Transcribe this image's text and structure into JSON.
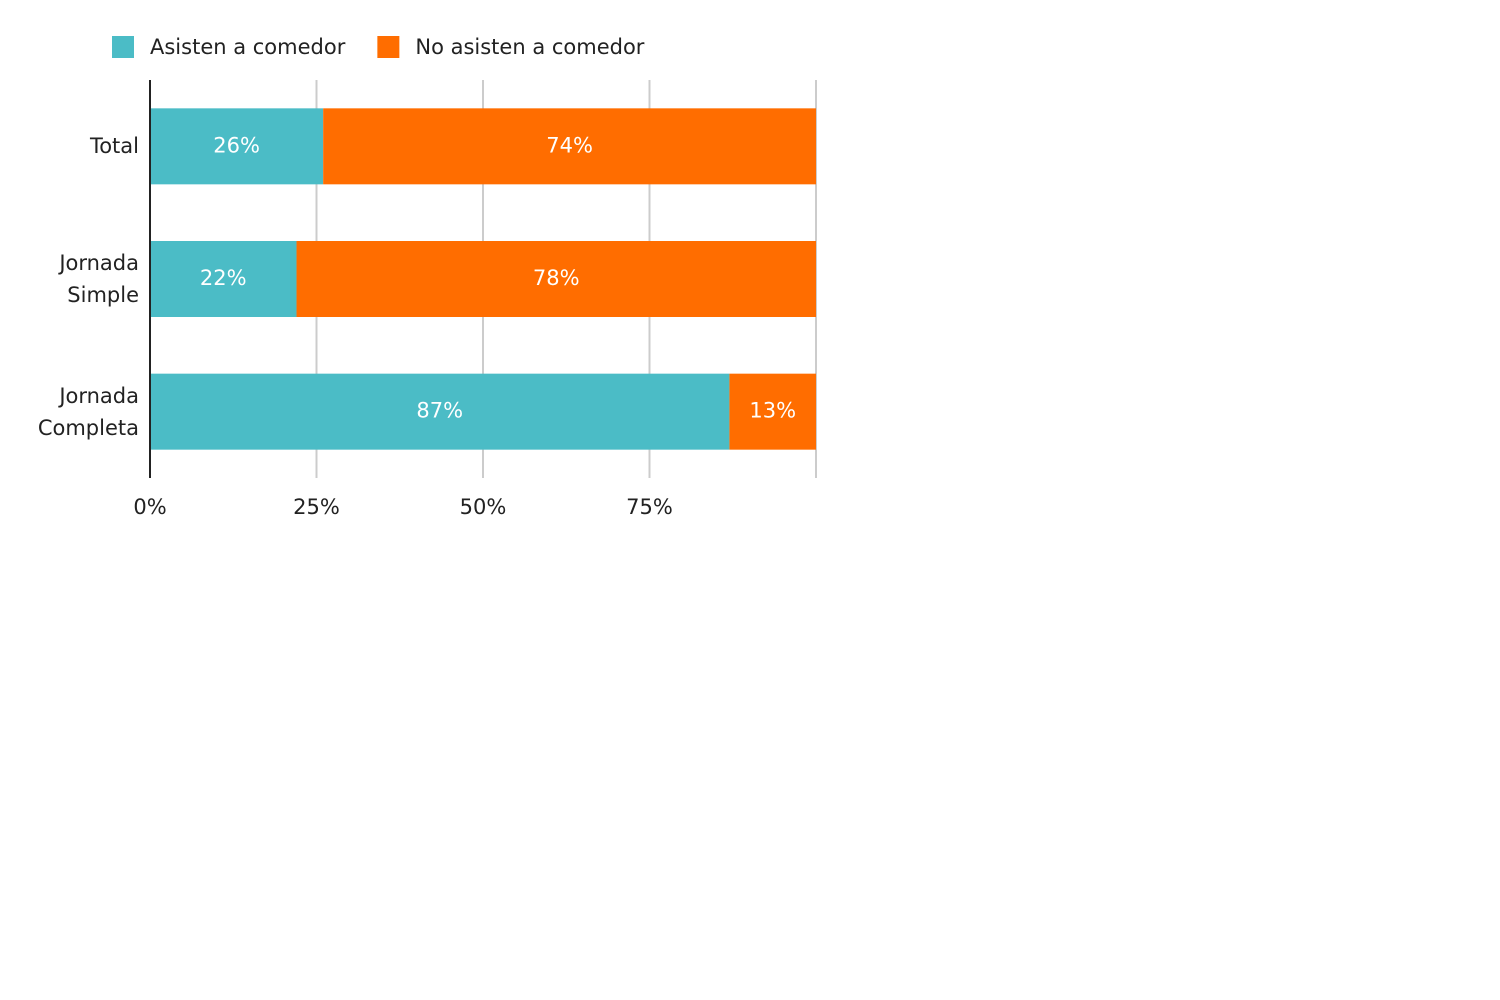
{
  "chart_data": {
    "type": "stacked-bar-horizontal",
    "categories": [
      "Total",
      "Jornada Simple",
      "Jornada Completa"
    ],
    "series": [
      {
        "name": "Asisten a comedor",
        "color": "#4bbcc6",
        "values": [
          26,
          22,
          87
        ],
        "value_labels": [
          "26%",
          "22%",
          "87%"
        ]
      },
      {
        "name": "No asisten a comedor",
        "color": "#ff6d00",
        "values": [
          74,
          78,
          13
        ],
        "value_labels": [
          "74%",
          "78%",
          "13%"
        ]
      }
    ],
    "xlim": [
      0,
      100
    ],
    "xticks": [
      {
        "value": 0,
        "label": "0%"
      },
      {
        "value": 25,
        "label": "25%"
      },
      {
        "value": 50,
        "label": "50%"
      },
      {
        "value": 75,
        "label": "75%"
      }
    ],
    "grid": true,
    "legend": "top"
  }
}
